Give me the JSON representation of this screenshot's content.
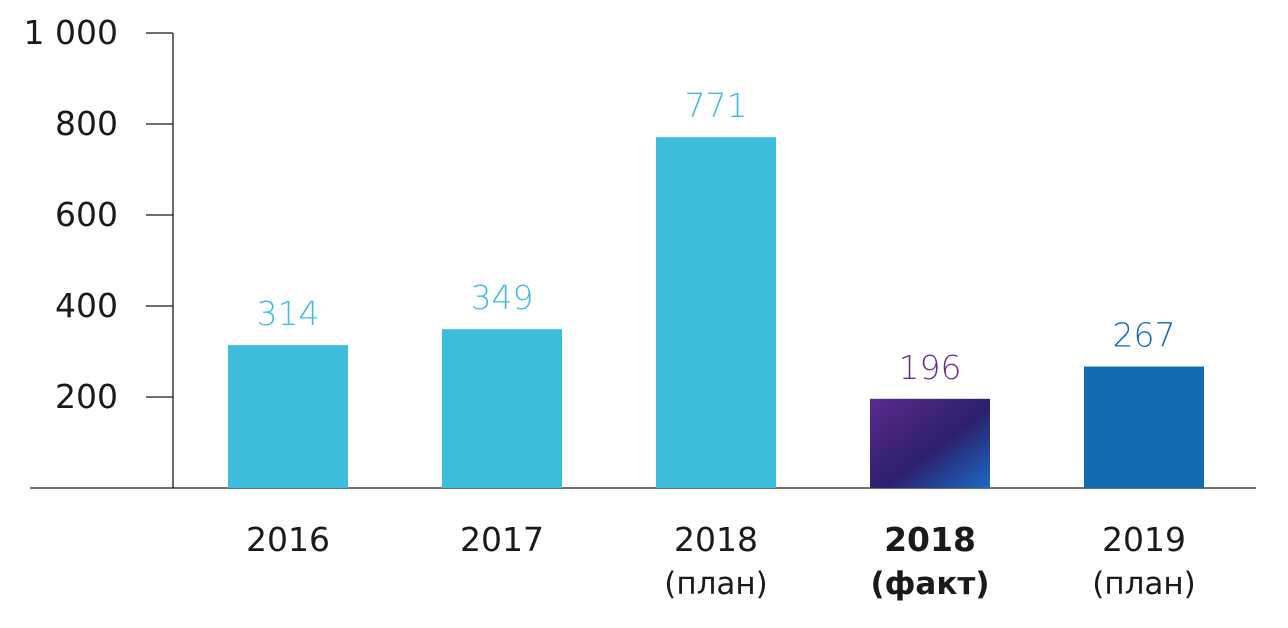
{
  "chart_data": {
    "type": "bar",
    "title": "",
    "xlabel": "",
    "ylabel": "",
    "ylim": [
      0,
      1000
    ],
    "yticks": [
      {
        "value": 200,
        "label": "200"
      },
      {
        "value": 400,
        "label": "400"
      },
      {
        "value": 600,
        "label": "600"
      },
      {
        "value": 800,
        "label": "800"
      },
      {
        "value": 1000,
        "label": "1 000"
      }
    ],
    "grid": false,
    "legend": "none",
    "categories": [
      {
        "line1": "2016",
        "line2": "",
        "bold": false
      },
      {
        "line1": "2017",
        "line2": "",
        "bold": false
      },
      {
        "line1": "2018",
        "line2": "(план)",
        "bold": false
      },
      {
        "line1": "2018",
        "line2": "(факт)",
        "bold": true
      },
      {
        "line1": "2019",
        "line2": "(план)",
        "bold": false
      }
    ],
    "values": [
      314,
      349,
      771,
      196,
      267
    ],
    "value_labels": [
      "314",
      "349",
      "771",
      "196",
      "267"
    ],
    "bar_styles": [
      "light-blue",
      "light-blue",
      "light-blue",
      "gradient-purple-blue",
      "dark-blue"
    ],
    "colors": {
      "light-blue": "#3dbcdc",
      "dark-blue": "#106bb4",
      "gradient-start": "#5a2a8c",
      "gradient-mid": "#2d1f6e",
      "gradient-end": "#1a6bc4",
      "label_light": "#3dbcdc",
      "label_purple": "#6a2f8c",
      "label_dark": "#106bb4",
      "axis": "#1a1a1a",
      "text": "#1a1a1a"
    },
    "value_label_colors": [
      "label_light",
      "label_light",
      "label_light",
      "label_purple",
      "label_dark"
    ]
  }
}
